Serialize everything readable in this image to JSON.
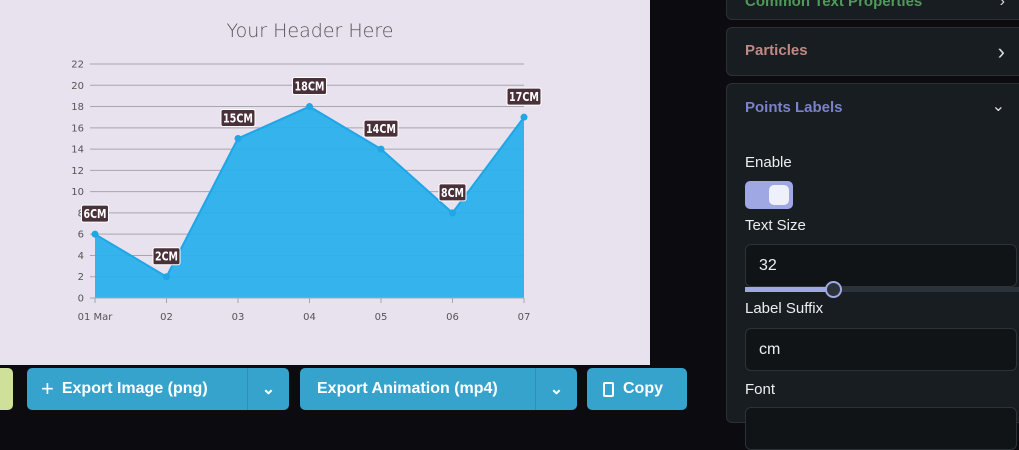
{
  "chart_data": {
    "type": "area",
    "title": "Your Header Here",
    "categories": [
      "01 Mar",
      "02",
      "03",
      "04",
      "05",
      "06",
      "07"
    ],
    "values": [
      6,
      2,
      15,
      18,
      14,
      8,
      17
    ],
    "data_labels": [
      "6CM",
      "2CM",
      "15CM",
      "18CM",
      "14CM",
      "8CM",
      "17CM"
    ],
    "y_ticks": [
      0,
      2,
      4,
      6,
      8,
      10,
      12,
      14,
      16,
      18,
      20,
      22
    ],
    "ylim": [
      0,
      22
    ],
    "grid": true,
    "colors": {
      "fill": "#2bb0ec",
      "line": "#1ea6e6",
      "label_bg": "#4a3038",
      "background": "#e8e2ee"
    }
  },
  "toolbar": {
    "export_image": "Export Image (png)",
    "export_animation": "Export Animation (mp4)",
    "copy": "Copy"
  },
  "panel": {
    "sections": [
      {
        "title": "Common Text Properties",
        "color": "#4f9a5a",
        "state": "collapsed"
      },
      {
        "title": "Particles",
        "color": "#c08a84",
        "state": "collapsed"
      },
      {
        "title": "Points Labels",
        "color": "#7b82c8",
        "state": "expanded"
      }
    ],
    "enable_label": "Enable",
    "enable_on": true,
    "text_size_label": "Text Size",
    "text_size_value": "32",
    "text_size_slider_fraction": 0.32,
    "label_suffix_label": "Label Suffix",
    "label_suffix_value": "cm",
    "font_label": "Font",
    "accent": "#a0a8e4"
  }
}
